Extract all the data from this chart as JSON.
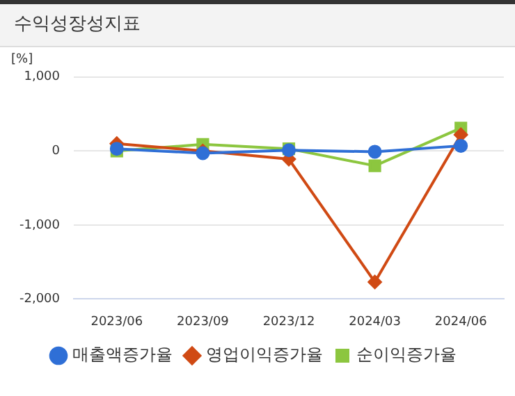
{
  "chart_data": {
    "type": "line",
    "title": "수익성장성지표",
    "ylabel": "[%]",
    "categories": [
      "2023/06",
      "2023/09",
      "2023/12",
      "2024/03",
      "2024/06"
    ],
    "series": [
      {
        "name": "매출액증가율",
        "color": "#2f6fd6",
        "marker": "circle",
        "values": [
          30,
          -30,
          10,
          -10,
          70
        ]
      },
      {
        "name": "영업이익증가율",
        "color": "#d04a14",
        "marker": "diamond",
        "values": [
          100,
          0,
          -110,
          -1770,
          220
        ]
      },
      {
        "name": "순이익증가율",
        "color": "#8cc63f",
        "marker": "square",
        "values": [
          0,
          90,
          30,
          -200,
          310
        ]
      }
    ],
    "ylim": [
      -2000,
      1000
    ],
    "yticks": [
      {
        "value": -2000,
        "label": "-2,000"
      },
      {
        "value": -1000,
        "label": "-1,000"
      },
      0,
      {
        "value": 1000,
        "label": "1,000"
      }
    ],
    "grid": "y",
    "legend": "bottom",
    "line_style": "solid"
  }
}
